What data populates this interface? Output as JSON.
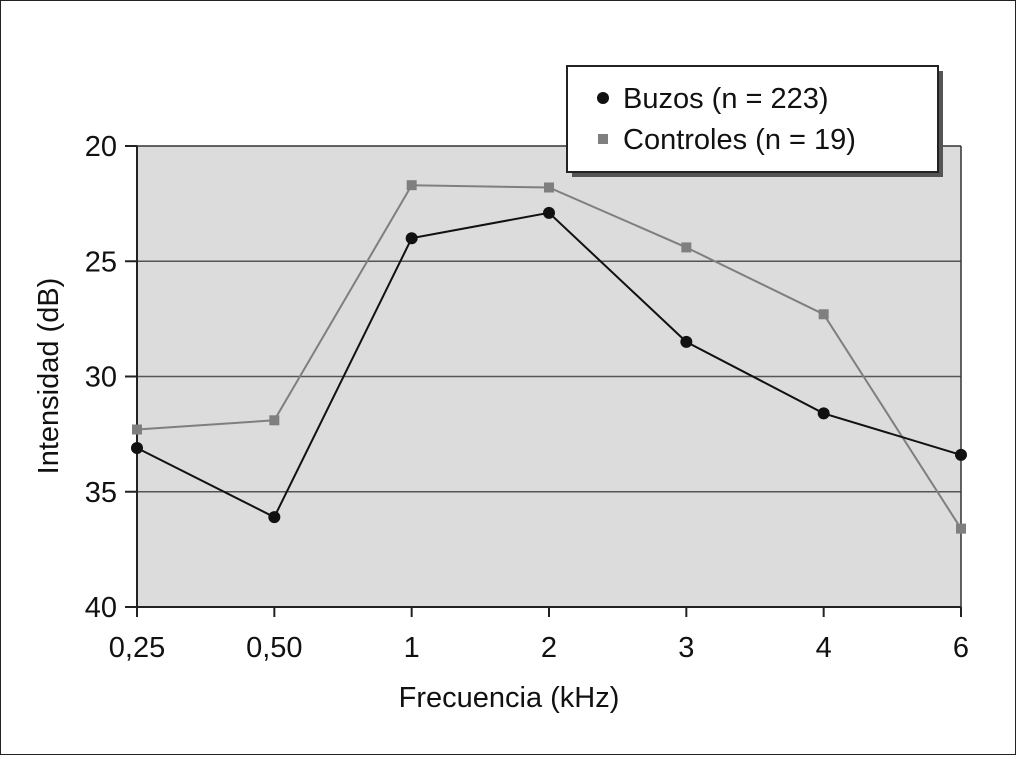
{
  "chart_data": {
    "type": "line",
    "title": "",
    "xlabel": "Frecuencia (kHz)",
    "ylabel": "Intensidad (dB)",
    "categories": [
      "0,25",
      "0,50",
      "1",
      "2",
      "3",
      "4",
      "6"
    ],
    "y_ticks": [
      "20",
      "25",
      "30",
      "35",
      "40"
    ],
    "ylim": [
      20,
      40
    ],
    "y_inverted": true,
    "grid": "horizontal",
    "legend_position": "top-right",
    "series": [
      {
        "name": "Buzos (n = 223)",
        "marker": "circle",
        "color": "#111111",
        "values": [
          33.1,
          36.1,
          24.0,
          22.9,
          28.5,
          31.6,
          33.4
        ]
      },
      {
        "name": "Controles (n = 19)",
        "marker": "square",
        "color": "#7f7f7f",
        "values": [
          32.3,
          31.9,
          21.7,
          21.8,
          24.4,
          27.3,
          36.6
        ]
      }
    ]
  }
}
